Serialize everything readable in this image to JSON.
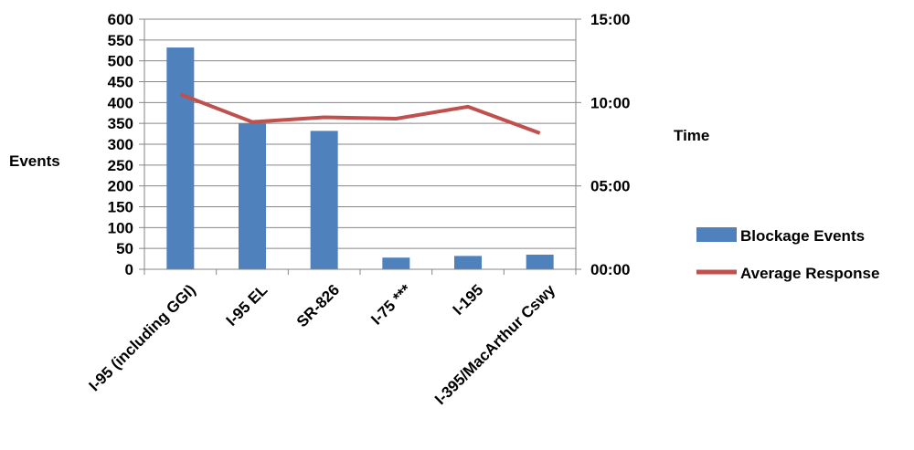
{
  "chart_data": {
    "type": "bar",
    "categories": [
      "I-95 (including GGI)",
      "I-95 EL",
      "SR-826",
      "I-75 ***",
      "I-195",
      "I-395/MacArthur Cswy"
    ],
    "series": [
      {
        "name": "Blockage Events",
        "type": "bar",
        "axis": "left",
        "color": "#4F81BD",
        "values": [
          532,
          350,
          332,
          28,
          32,
          35
        ]
      },
      {
        "name": "Average Response",
        "type": "line",
        "axis": "right",
        "color": "#C0504D",
        "values": [
          "10:30",
          "08:50",
          "09:07",
          "09:02",
          "09:45",
          "08:10"
        ]
      }
    ],
    "ylabel": "Events",
    "ylabel_right": "Time",
    "ylim": [
      0,
      600
    ],
    "yticks": [
      "0",
      "50",
      "100",
      "150",
      "200",
      "250",
      "300",
      "350",
      "400",
      "450",
      "500",
      "550",
      "600"
    ],
    "ylim_right": [
      "00:00",
      "15:00"
    ],
    "yticks_right": [
      "00:00",
      "05:00",
      "10:00",
      "15:00"
    ],
    "grid": true,
    "legend": "right"
  }
}
